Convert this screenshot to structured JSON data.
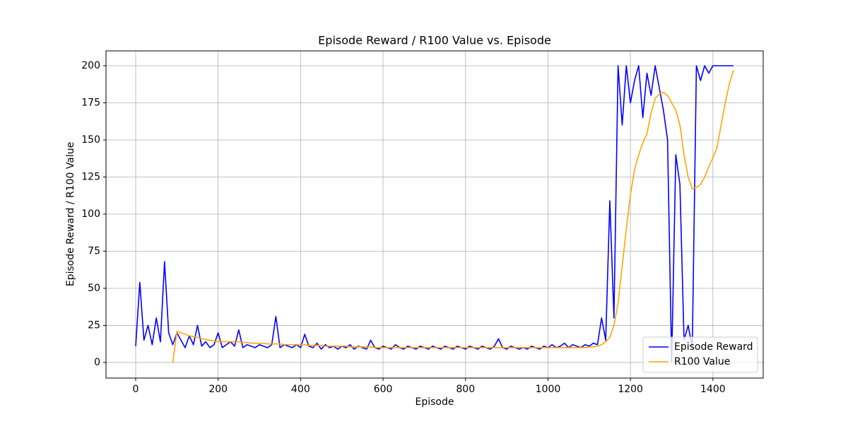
{
  "chart_data": {
    "type": "line",
    "title": "Episode Reward / R100 Value vs. Episode",
    "xlabel": "Episode",
    "ylabel": "Episode Reward / R100 Value",
    "x": [
      0,
      10,
      20,
      30,
      40,
      50,
      60,
      70,
      80,
      90,
      100,
      110,
      120,
      130,
      140,
      150,
      160,
      170,
      180,
      190,
      200,
      210,
      220,
      230,
      240,
      250,
      260,
      270,
      280,
      290,
      300,
      310,
      320,
      330,
      340,
      350,
      360,
      370,
      380,
      390,
      400,
      410,
      420,
      430,
      440,
      450,
      460,
      470,
      480,
      490,
      500,
      510,
      520,
      530,
      540,
      550,
      560,
      570,
      580,
      590,
      600,
      610,
      620,
      630,
      640,
      650,
      660,
      670,
      680,
      690,
      700,
      710,
      720,
      730,
      740,
      750,
      760,
      770,
      780,
      790,
      800,
      810,
      820,
      830,
      840,
      850,
      860,
      870,
      880,
      890,
      900,
      910,
      920,
      930,
      940,
      950,
      960,
      970,
      980,
      990,
      1000,
      1010,
      1020,
      1030,
      1040,
      1050,
      1060,
      1070,
      1080,
      1090,
      1100,
      1110,
      1120,
      1130,
      1140,
      1150,
      1160,
      1170,
      1180,
      1190,
      1200,
      1210,
      1220,
      1230,
      1240,
      1250,
      1260,
      1270,
      1280,
      1290,
      1300,
      1310,
      1320,
      1330,
      1340,
      1350,
      1360,
      1370,
      1380,
      1390,
      1400,
      1410,
      1420,
      1430,
      1440,
      1450
    ],
    "series": [
      {
        "name": "Episode Reward",
        "color": "#0000ff",
        "values": [
          11,
          54,
          15,
          25,
          12,
          30,
          14,
          68,
          20,
          12,
          20,
          15,
          10,
          18,
          12,
          25,
          11,
          14,
          10,
          12,
          20,
          10,
          12,
          14,
          11,
          22,
          10,
          12,
          11,
          10,
          12,
          11,
          10,
          12,
          31,
          10,
          12,
          11,
          10,
          12,
          10,
          19,
          11,
          10,
          13,
          9,
          12,
          10,
          11,
          9,
          11,
          10,
          12,
          9,
          11,
          10,
          9,
          15,
          10,
          9,
          11,
          10,
          9,
          12,
          10,
          9,
          11,
          10,
          9,
          11,
          10,
          9,
          11,
          10,
          9,
          11,
          10,
          9,
          11,
          10,
          9,
          11,
          10,
          9,
          11,
          10,
          9,
          11,
          16,
          10,
          9,
          11,
          10,
          9,
          10,
          9,
          11,
          10,
          9,
          11,
          10,
          12,
          10,
          11,
          13,
          10,
          12,
          11,
          10,
          12,
          11,
          13,
          12,
          30,
          15,
          109,
          30,
          200,
          160,
          200,
          175,
          190,
          200,
          165,
          195,
          180,
          200,
          185,
          170,
          150,
          0,
          140,
          120,
          15,
          25,
          10,
          200,
          190,
          200,
          195,
          200,
          200,
          200,
          200,
          200,
          200
        ]
      },
      {
        "name": "R100 Value",
        "color": "#ffa500",
        "values": [
          null,
          null,
          null,
          null,
          null,
          null,
          null,
          null,
          null,
          0,
          21,
          20,
          19,
          18,
          17.5,
          17,
          16,
          15.5,
          15,
          14.5,
          14,
          14,
          14,
          14,
          14,
          14,
          13.5,
          13.5,
          13,
          13,
          13,
          13,
          12.5,
          12.5,
          12.5,
          12.5,
          12,
          12,
          12,
          12,
          12,
          12,
          11.5,
          11.5,
          11.5,
          11.5,
          11,
          11,
          11,
          11,
          11,
          11,
          10.5,
          10.5,
          10.5,
          10.5,
          10.5,
          10.5,
          10,
          10,
          10,
          10,
          10,
          10,
          10,
          10,
          10,
          10,
          10,
          10,
          10,
          10,
          10,
          10,
          10,
          10,
          10,
          10,
          10,
          10,
          10,
          10,
          10,
          10,
          10,
          10,
          10,
          10,
          10,
          10,
          10,
          10,
          10,
          10,
          10,
          10,
          10,
          10,
          10,
          10,
          10,
          10,
          10,
          10,
          10,
          10,
          10,
          10,
          10,
          10,
          10.5,
          10.5,
          11,
          12,
          14,
          17,
          25,
          40,
          65,
          90,
          113,
          130,
          140,
          148,
          154,
          168,
          178,
          181,
          182,
          180,
          175,
          170,
          160,
          140,
          125,
          117,
          118,
          120,
          125,
          132,
          138,
          145,
          160,
          175,
          188,
          197
        ]
      }
    ],
    "xlim": [
      -72,
      1522
    ],
    "ylim": [
      -10.5,
      210
    ],
    "xticks": [
      0,
      200,
      400,
      600,
      800,
      1000,
      1200,
      1400
    ],
    "yticks": [
      0,
      25,
      50,
      75,
      100,
      125,
      150,
      175,
      200
    ],
    "grid": true,
    "legend": "lower right"
  }
}
